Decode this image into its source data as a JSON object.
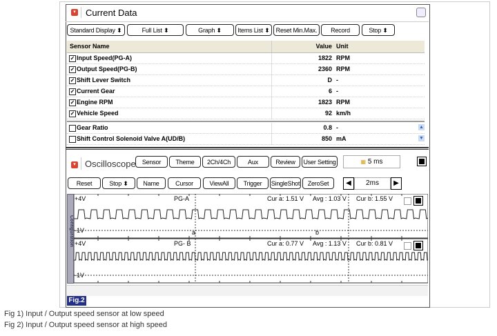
{
  "current_data": {
    "title": "Current Data",
    "toolbar": [
      "Standard Display ⬍",
      "Full List ⬍",
      "Graph ⬍",
      "Items List ⬍",
      "Reset Min.Max.",
      "Record",
      "Stop ⬍"
    ],
    "columns": {
      "name": "Sensor Name",
      "value": "Value",
      "unit": "Unit"
    },
    "rows": [
      {
        "name": "Input Speed(PG-A)",
        "value": "1822",
        "unit": "RPM",
        "checked": true
      },
      {
        "name": "Output Speed(PG-B)",
        "value": "2360",
        "unit": "RPM",
        "checked": true
      },
      {
        "name": "Shift Lever Switch",
        "value": "D",
        "unit": "-",
        "checked": true
      },
      {
        "name": "Current Gear",
        "value": "6",
        "unit": "-",
        "checked": true
      },
      {
        "name": "Engine RPM",
        "value": "1823",
        "unit": "RPM",
        "checked": true
      },
      {
        "name": "Vehicle Speed",
        "value": "92",
        "unit": "km/h",
        "checked": true
      },
      {
        "name": "Gear Ratio",
        "value": "0.8",
        "unit": "-",
        "checked": false
      },
      {
        "name": "Shift Control Solenoid Valve A(UD/B)",
        "value": "850",
        "unit": "mA",
        "checked": false
      }
    ]
  },
  "oscilloscope": {
    "title": "Oscilloscope",
    "row1": [
      "Sensor",
      "Theme",
      "2Ch/4Ch",
      "Aux",
      "Review",
      "User Setting"
    ],
    "time_div": "5 ms",
    "row2": [
      "Reset",
      "Stop ⬍",
      "Name",
      "Cursor",
      "ViewAll",
      "Trigger",
      "SingleShot",
      "ZeroSet"
    ],
    "sample": "2ms",
    "side_tab": "Configuration",
    "channels": [
      {
        "max": "+4V",
        "min": "-1V",
        "name": "PG-A",
        "cur_a": "Cur a: 1.51 V",
        "avg": "Avg  : 1.03 V",
        "cur_b": "Cur b: 1.55 V",
        "cursor_a": "a",
        "cursor_b": "b",
        "cycles": 28
      },
      {
        "max": "+4V",
        "min": "-1V",
        "name": "PG- B",
        "cur_a": "Cur a: 0.77 V",
        "avg": "Avg  : 1.13 V",
        "cur_b": "Cur b: 0.81 V",
        "cycles": 58
      }
    ]
  },
  "figure_label": "Fig.2",
  "captions": [
    "Fig 1) Input / Output speed sensor at low speed",
    "Fig 2) Input / Output speed sensor at high speed"
  ]
}
